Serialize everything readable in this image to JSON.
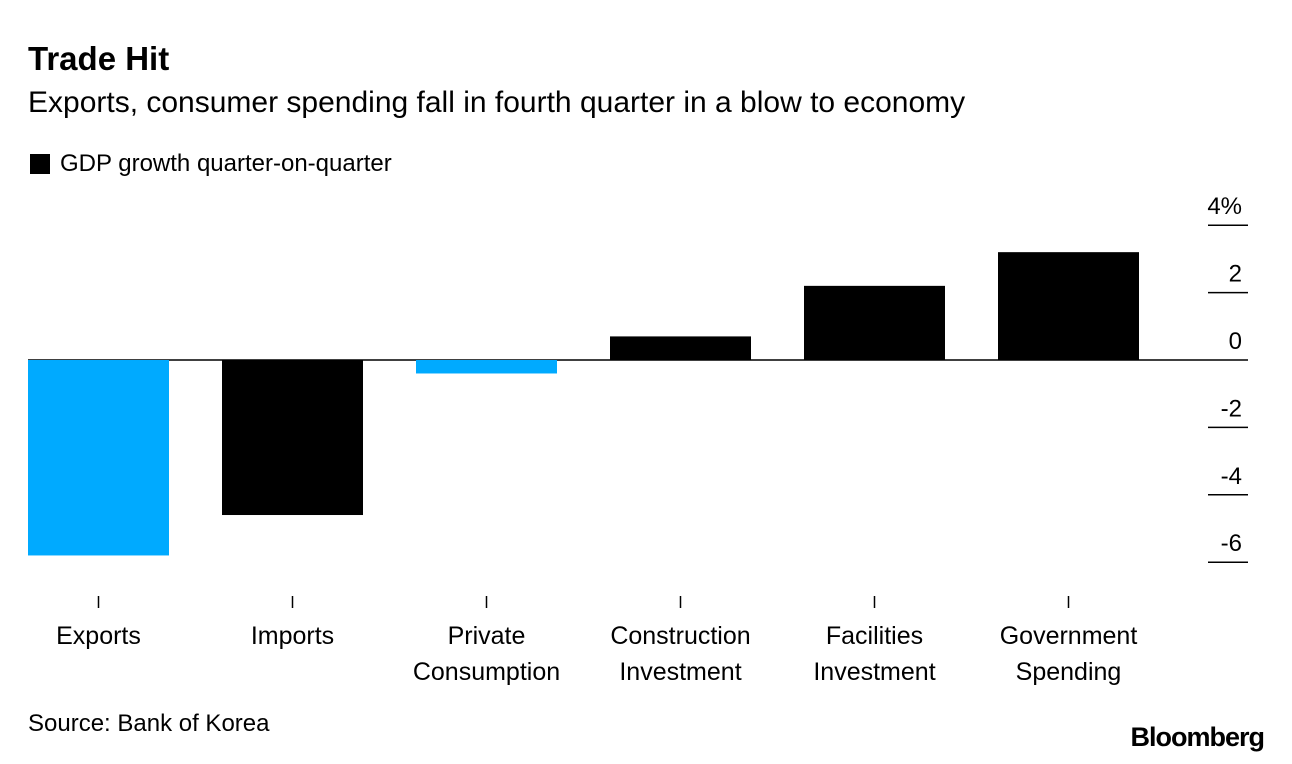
{
  "header": {
    "title": "Trade Hit",
    "subtitle": "Exports, consumer spending fall in fourth quarter in a blow to economy"
  },
  "legend": {
    "label": "GDP growth quarter-on-quarter"
  },
  "footer": {
    "source": "Source: Bank of Korea",
    "brand": "Bloomberg"
  },
  "colors": {
    "highlight": "#00aaff",
    "default": "#000000"
  },
  "chart_data": {
    "type": "bar",
    "title": "Trade Hit",
    "subtitle": "Exports, consumer spending fall in fourth quarter in a blow to economy",
    "xlabel": "",
    "ylabel": "",
    "ylim": [
      -6,
      4
    ],
    "grid": false,
    "legend_position": "top-left",
    "series": [
      {
        "name": "GDP growth quarter-on-quarter",
        "values": [
          -5.8,
          -4.6,
          -0.4,
          0.7,
          2.2,
          3.2
        ]
      }
    ],
    "categories": [
      [
        "Exports"
      ],
      [
        "Imports"
      ],
      [
        "Private",
        "Consumption"
      ],
      [
        "Construction",
        "Investment"
      ],
      [
        "Facilities",
        "Investment"
      ],
      [
        "Government",
        "Spending"
      ]
    ],
    "highlighted": [
      true,
      false,
      true,
      false,
      false,
      false
    ],
    "y_ticks": [
      {
        "value": 4,
        "label": "4%"
      },
      {
        "value": 2,
        "label": "2"
      },
      {
        "value": 0,
        "label": "0"
      },
      {
        "value": -2,
        "label": "-2"
      },
      {
        "value": -4,
        "label": "-4"
      },
      {
        "value": -6,
        "label": "-6"
      }
    ]
  }
}
